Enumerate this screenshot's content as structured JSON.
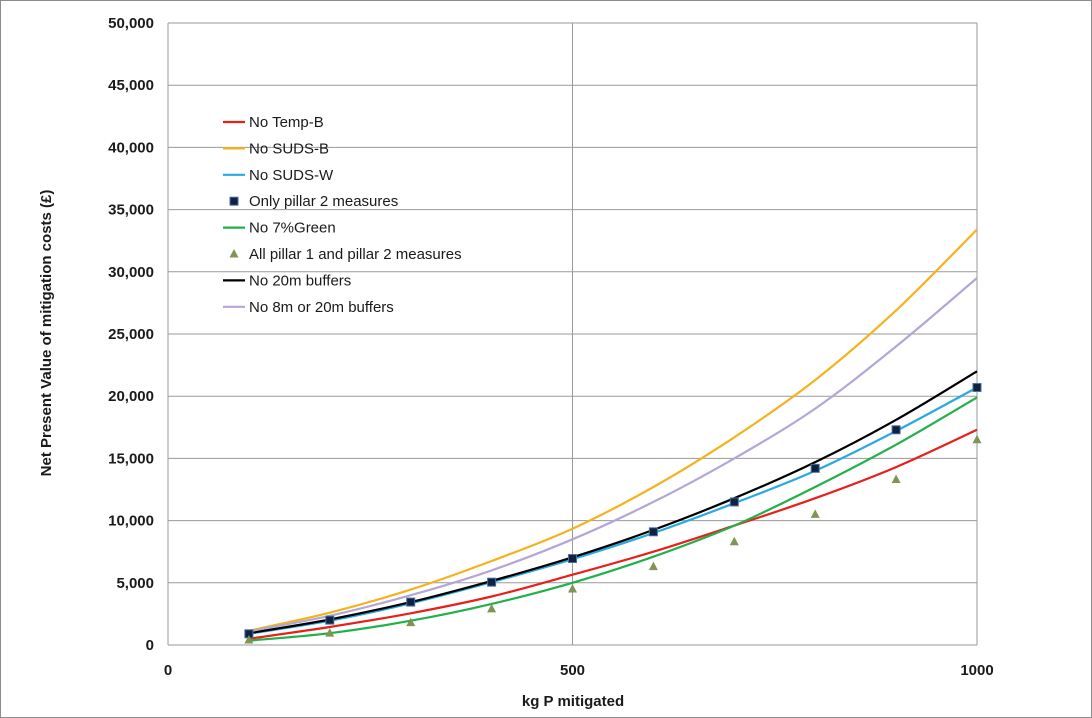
{
  "chart_data": {
    "type": "line",
    "title": "",
    "xlabel": "kg P mitigated",
    "ylabel": "Net Present Value of mitigation costs (£)",
    "xlim": [
      0,
      1000
    ],
    "ylim": [
      0,
      50000
    ],
    "x_ticks": [
      0,
      500,
      1000
    ],
    "x_tick_labels": [
      "0",
      "500",
      "1000"
    ],
    "y_ticks": [
      0,
      5000,
      10000,
      15000,
      20000,
      25000,
      30000,
      35000,
      40000,
      45000,
      50000
    ],
    "y_tick_labels": [
      "0",
      "5,000",
      "10,000",
      "15,000",
      "20,000",
      "25,000",
      "30,000",
      "35,000",
      "40,000",
      "45,000",
      "50,000"
    ],
    "grid": "on",
    "legend_position": "top-left",
    "x": [
      100,
      200,
      300,
      400,
      500,
      600,
      700,
      800,
      900,
      1000
    ],
    "series": [
      {
        "name": "No Temp-B",
        "style": "line",
        "color": "#e8201c",
        "values": [
          500,
          1450,
          2550,
          3900,
          5650,
          7500,
          9600,
          11800,
          14300,
          17300
        ]
      },
      {
        "name": "No SUDS-B",
        "style": "line",
        "color": "#f5b21f",
        "values": [
          1150,
          2600,
          4450,
          6750,
          9350,
          12700,
          16700,
          21300,
          26900,
          33400
        ]
      },
      {
        "name": "No SUDS-W",
        "style": "line",
        "color": "#27aae1",
        "values": [
          900,
          1950,
          3350,
          5050,
          6900,
          9000,
          11400,
          14000,
          17200,
          20700
        ]
      },
      {
        "name": "Only pillar 2 measures",
        "style": "markers",
        "marker": "square",
        "color": "#0f2240",
        "values": [
          900,
          2000,
          3450,
          5050,
          6950,
          9100,
          11500,
          14200,
          17300,
          20700
        ]
      },
      {
        "name": "No 7%Green",
        "style": "line",
        "color": "#22b04b",
        "values": [
          350,
          950,
          1950,
          3300,
          5000,
          7100,
          9600,
          12700,
          16100,
          19900
        ]
      },
      {
        "name": "All pillar 1 and pillar 2 measures",
        "style": "markers",
        "marker": "triangle",
        "color": "#7f9455",
        "values": [
          400,
          950,
          1800,
          2900,
          4500,
          6300,
          8300,
          10500,
          13300,
          16500
        ]
      },
      {
        "name": "No 20m buffers",
        "style": "line",
        "color": "#000000",
        "values": [
          950,
          2050,
          3450,
          5150,
          7050,
          9250,
          11800,
          14700,
          18100,
          22000
        ]
      },
      {
        "name": "No 8m or 20m buffers",
        "style": "line",
        "color": "#b4a7d6",
        "values": [
          1100,
          2350,
          4000,
          6000,
          8500,
          11500,
          15000,
          19000,
          24000,
          29500
        ]
      }
    ]
  }
}
